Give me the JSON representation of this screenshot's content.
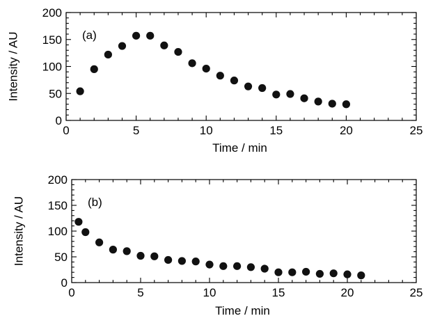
{
  "chart_data": [
    {
      "type": "scatter",
      "panel_label": "(a)",
      "xlabel": "Time / min",
      "ylabel": "Intensity / AU",
      "xlim": [
        0,
        25
      ],
      "ylim": [
        0,
        200
      ],
      "xticks": [
        0,
        5,
        10,
        15,
        20,
        25
      ],
      "yticks": [
        0,
        50,
        100,
        150,
        200
      ],
      "grid": false,
      "series": [
        {
          "color": "#111111",
          "x": [
            1,
            2,
            3,
            4,
            5,
            6,
            7,
            8,
            9,
            10,
            11,
            12,
            13,
            14,
            15,
            16,
            17,
            18,
            19,
            20
          ],
          "y": [
            54,
            95,
            122,
            138,
            157,
            157,
            139,
            127,
            106,
            96,
            83,
            74,
            63,
            60,
            48,
            49,
            41,
            35,
            31,
            30
          ]
        }
      ]
    },
    {
      "type": "scatter",
      "panel_label": "(b)",
      "xlabel": "Time / min",
      "ylabel": "Intensity / AU",
      "xlim": [
        0,
        25
      ],
      "ylim": [
        0,
        200
      ],
      "xticks": [
        0,
        5,
        10,
        15,
        20,
        25
      ],
      "yticks": [
        0,
        50,
        100,
        150,
        200
      ],
      "grid": false,
      "series": [
        {
          "color": "#111111",
          "x": [
            0.5,
            1,
            2,
            3,
            4,
            5,
            6,
            7,
            8,
            9,
            10,
            11,
            12,
            13,
            14,
            15,
            16,
            17,
            18,
            19,
            20,
            21
          ],
          "y": [
            118,
            98,
            78,
            64,
            61,
            52,
            51,
            44,
            42,
            41,
            35,
            32,
            32,
            30,
            27,
            20,
            20,
            21,
            17,
            18,
            16,
            14
          ]
        }
      ]
    }
  ]
}
